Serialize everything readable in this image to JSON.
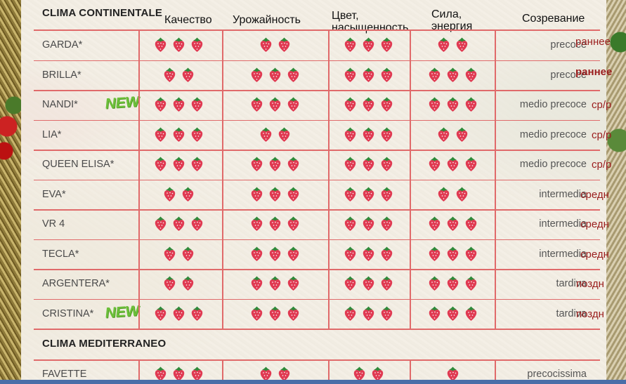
{
  "headers": {
    "quality": "Качество",
    "yield": "Урожайность",
    "color": "Цвет,\nнасыщенность",
    "vigor": "Сила,\nэнергия",
    "ripening": "Созревание"
  },
  "sections": {
    "continental": "CLIMA CONTINENTALE",
    "mediterranean": "CLIMA MEDITERRANEO"
  },
  "badge_text": "NEW",
  "rows": [
    {
      "name": "GARDA*",
      "new": false,
      "quality": 3,
      "yield": 2,
      "color": 3,
      "vigor": 2,
      "ripening": "precoce",
      "ripening_ru": "раннее",
      "ru_bold": false
    },
    {
      "name": "BRILLA*",
      "new": false,
      "quality": 2,
      "yield": 3,
      "color": 3,
      "vigor": 3,
      "ripening": "precoce",
      "ripening_ru": "раннее",
      "ru_bold": true
    },
    {
      "name": "NANDI*",
      "new": true,
      "quality": 3,
      "yield": 3,
      "color": 3,
      "vigor": 3,
      "ripening": "medio precoce",
      "ripening_ru": "ср/р",
      "ru_bold": false
    },
    {
      "name": "LIA*",
      "new": false,
      "quality": 3,
      "yield": 2,
      "color": 3,
      "vigor": 2,
      "ripening": "medio precoce",
      "ripening_ru": "ср/р",
      "ru_bold": false
    },
    {
      "name": "QUEEN ELISA*",
      "new": false,
      "quality": 3,
      "yield": 3,
      "color": 3,
      "vigor": 3,
      "ripening": "medio precoce",
      "ripening_ru": "ср/р",
      "ru_bold": false
    },
    {
      "name": "EVA*",
      "new": false,
      "quality": 2,
      "yield": 3,
      "color": 3,
      "vigor": 2,
      "ripening": "intermedia",
      "ripening_ru": "средн",
      "ru_bold": false
    },
    {
      "name": "VR 4",
      "new": false,
      "quality": 3,
      "yield": 3,
      "color": 3,
      "vigor": 3,
      "ripening": "intermedia",
      "ripening_ru": "средн",
      "ru_bold": false
    },
    {
      "name": "TECLA*",
      "new": false,
      "quality": 2,
      "yield": 3,
      "color": 3,
      "vigor": 3,
      "ripening": "intermedia",
      "ripening_ru": "средн",
      "ru_bold": false
    },
    {
      "name": "ARGENTERA*",
      "new": false,
      "quality": 2,
      "yield": 3,
      "color": 3,
      "vigor": 3,
      "ripening": "tardiva",
      "ripening_ru": "поздн",
      "ru_bold": false
    },
    {
      "name": "CRISTINA*",
      "new": true,
      "quality": 3,
      "yield": 3,
      "color": 3,
      "vigor": 3,
      "ripening": "tardiva",
      "ripening_ru": "поздн",
      "ru_bold": false
    }
  ],
  "mediterranean_rows": [
    {
      "name": "FAVETTE",
      "new": false,
      "quality": 3,
      "yield": 2,
      "color": 2,
      "vigor": 1,
      "ripening": "precocissima",
      "ripening_ru": "",
      "ru_bold": false
    }
  ],
  "colors": {
    "grid": "#e06a6a",
    "berry": "#e03a52",
    "badge": "#6cbf3a",
    "ripening_ru": "#9a1c1c"
  }
}
